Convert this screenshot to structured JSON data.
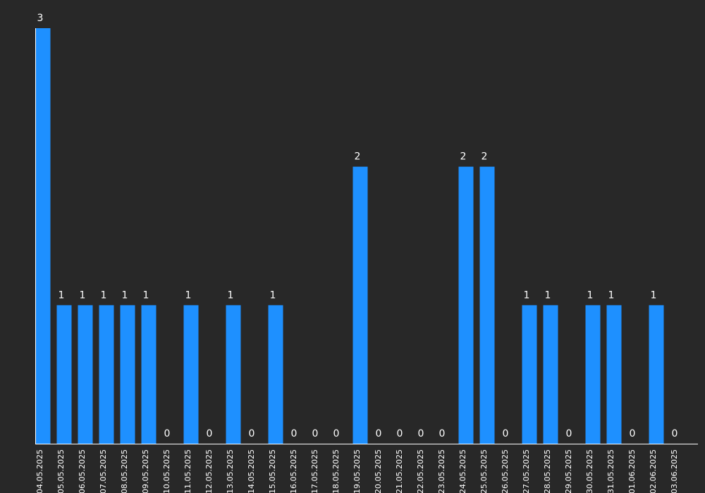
{
  "chart_data": {
    "type": "bar",
    "categories": [
      "04.05.2025",
      "05.05.2025",
      "06.05.2025",
      "07.05.2025",
      "08.05.2025",
      "09.05.2025",
      "10.05.2025",
      "11.05.2025",
      "12.05.2025",
      "13.05.2025",
      "14.05.2025",
      "15.05.2025",
      "16.05.2025",
      "17.05.2025",
      "18.05.2025",
      "19.05.2025",
      "20.05.2025",
      "21.05.2025",
      "22.05.2025",
      "23.05.2025",
      "24.05.2025",
      "25.05.2025",
      "26.05.2025",
      "27.05.2025",
      "28.05.2025",
      "29.05.2025",
      "30.05.2025",
      "31.05.2025",
      "01.06.2025",
      "02.06.2025",
      "03.06.2025"
    ],
    "values": [
      3,
      1,
      1,
      1,
      1,
      1,
      0,
      1,
      0,
      1,
      0,
      1,
      0,
      0,
      0,
      2,
      0,
      0,
      0,
      0,
      2,
      2,
      0,
      1,
      1,
      0,
      1,
      1,
      0,
      1,
      0
    ],
    "value_labels": [
      "3",
      "1",
      "1",
      "1",
      "1",
      "1",
      "0",
      "1",
      "0",
      "1",
      "0",
      "1",
      "0",
      "0",
      "0",
      "2",
      "0",
      "0",
      "0",
      "0",
      "2",
      "2",
      "0",
      "1",
      "1",
      "0",
      "1",
      "1",
      "0",
      "1",
      "0"
    ],
    "title": "",
    "xlabel": "",
    "ylabel": "",
    "ylim": [
      0,
      3
    ],
    "grid": false,
    "legend": "none",
    "colors": {
      "background": "#282828",
      "bar": "#1e90ff",
      "text": "#ffffff",
      "axis": "#ffffff"
    }
  }
}
